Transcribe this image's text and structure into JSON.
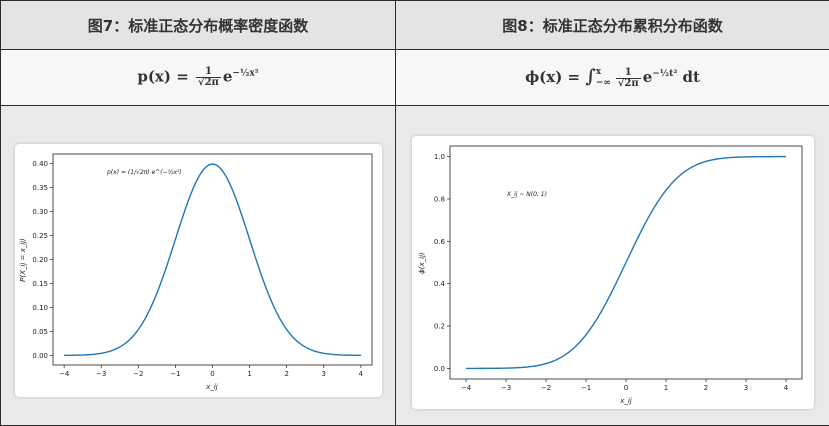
{
  "table": {
    "left_header": "图7：标准正态分布概率密度函数",
    "right_header": "图8：标准正态分布累积分布函数"
  },
  "formulas": {
    "pdf": {
      "lhs": "p(x) =",
      "num": "1",
      "den": "√2π",
      "base": "e",
      "exp": "−½x²"
    },
    "cdf": {
      "lhs": "ϕ(x) =",
      "integral": "∫",
      "upper": "x",
      "lower": "−∞",
      "num": "1",
      "den": "√2π",
      "base": "e",
      "exp": "−½t²",
      "tail": "dt"
    }
  },
  "chart_data": [
    {
      "type": "line",
      "title": "",
      "xlabel": "x_ij",
      "ylabel": "P(X_ij = x_ij)",
      "annotation": "p(x) = (1/√2π) e^(−½x²)",
      "xlim": [
        -4.3,
        4.3
      ],
      "ylim": [
        -0.02,
        0.42
      ],
      "xticks": [
        -4,
        -3,
        -2,
        -1,
        0,
        1,
        2,
        3,
        4
      ],
      "yticks": [
        0.0,
        0.05,
        0.1,
        0.15,
        0.2,
        0.25,
        0.3,
        0.35,
        0.4
      ],
      "xtick_labels": [
        "−4",
        "−3",
        "−2",
        "−1",
        "0",
        "1",
        "2",
        "3",
        "4"
      ],
      "ytick_labels": [
        "0.00",
        "0.05",
        "0.10",
        "0.15",
        "0.20",
        "0.25",
        "0.30",
        "0.35",
        "0.40"
      ],
      "series": [
        {
          "color": "#1f77b4",
          "x": [
            -4.0,
            -3.5,
            -3.0,
            -2.5,
            -2.0,
            -1.5,
            -1.0,
            -0.5,
            0.0,
            0.5,
            1.0,
            1.5,
            2.0,
            2.5,
            3.0,
            3.5,
            4.0
          ],
          "y": [
            0.0001,
            0.0009,
            0.0044,
            0.0175,
            0.054,
            0.1295,
            0.242,
            0.3521,
            0.3989,
            0.3521,
            0.242,
            0.1295,
            0.054,
            0.0175,
            0.0044,
            0.0009,
            0.0001
          ]
        }
      ],
      "grid": false,
      "legend": "none"
    },
    {
      "type": "line",
      "title": "",
      "xlabel": "x_ij",
      "ylabel": "ϕ(x_ij)",
      "annotation": "X_ij ~ N(0, 1)",
      "xlim": [
        -4.4,
        4.4
      ],
      "ylim": [
        -0.05,
        1.05
      ],
      "xticks": [
        -4,
        -3,
        -2,
        -1,
        0,
        1,
        2,
        3,
        4
      ],
      "yticks": [
        0.0,
        0.2,
        0.4,
        0.6,
        0.8,
        1.0
      ],
      "xtick_labels": [
        "−4",
        "−3",
        "−2",
        "−1",
        "0",
        "1",
        "2",
        "3",
        "4"
      ],
      "ytick_labels": [
        "0.0",
        "0.2",
        "0.4",
        "0.6",
        "0.8",
        "1.0"
      ],
      "series": [
        {
          "color": "#1f77b4",
          "x": [
            -4.0,
            -3.5,
            -3.0,
            -2.5,
            -2.0,
            -1.5,
            -1.0,
            -0.5,
            0.0,
            0.5,
            1.0,
            1.5,
            2.0,
            2.5,
            3.0,
            3.5,
            4.0
          ],
          "y": [
            0.0,
            0.0002,
            0.0013,
            0.0062,
            0.0228,
            0.0668,
            0.1587,
            0.3085,
            0.5,
            0.6915,
            0.8413,
            0.9332,
            0.9772,
            0.9938,
            0.9987,
            0.9998,
            1.0
          ]
        }
      ],
      "grid": false,
      "legend": "none"
    }
  ]
}
